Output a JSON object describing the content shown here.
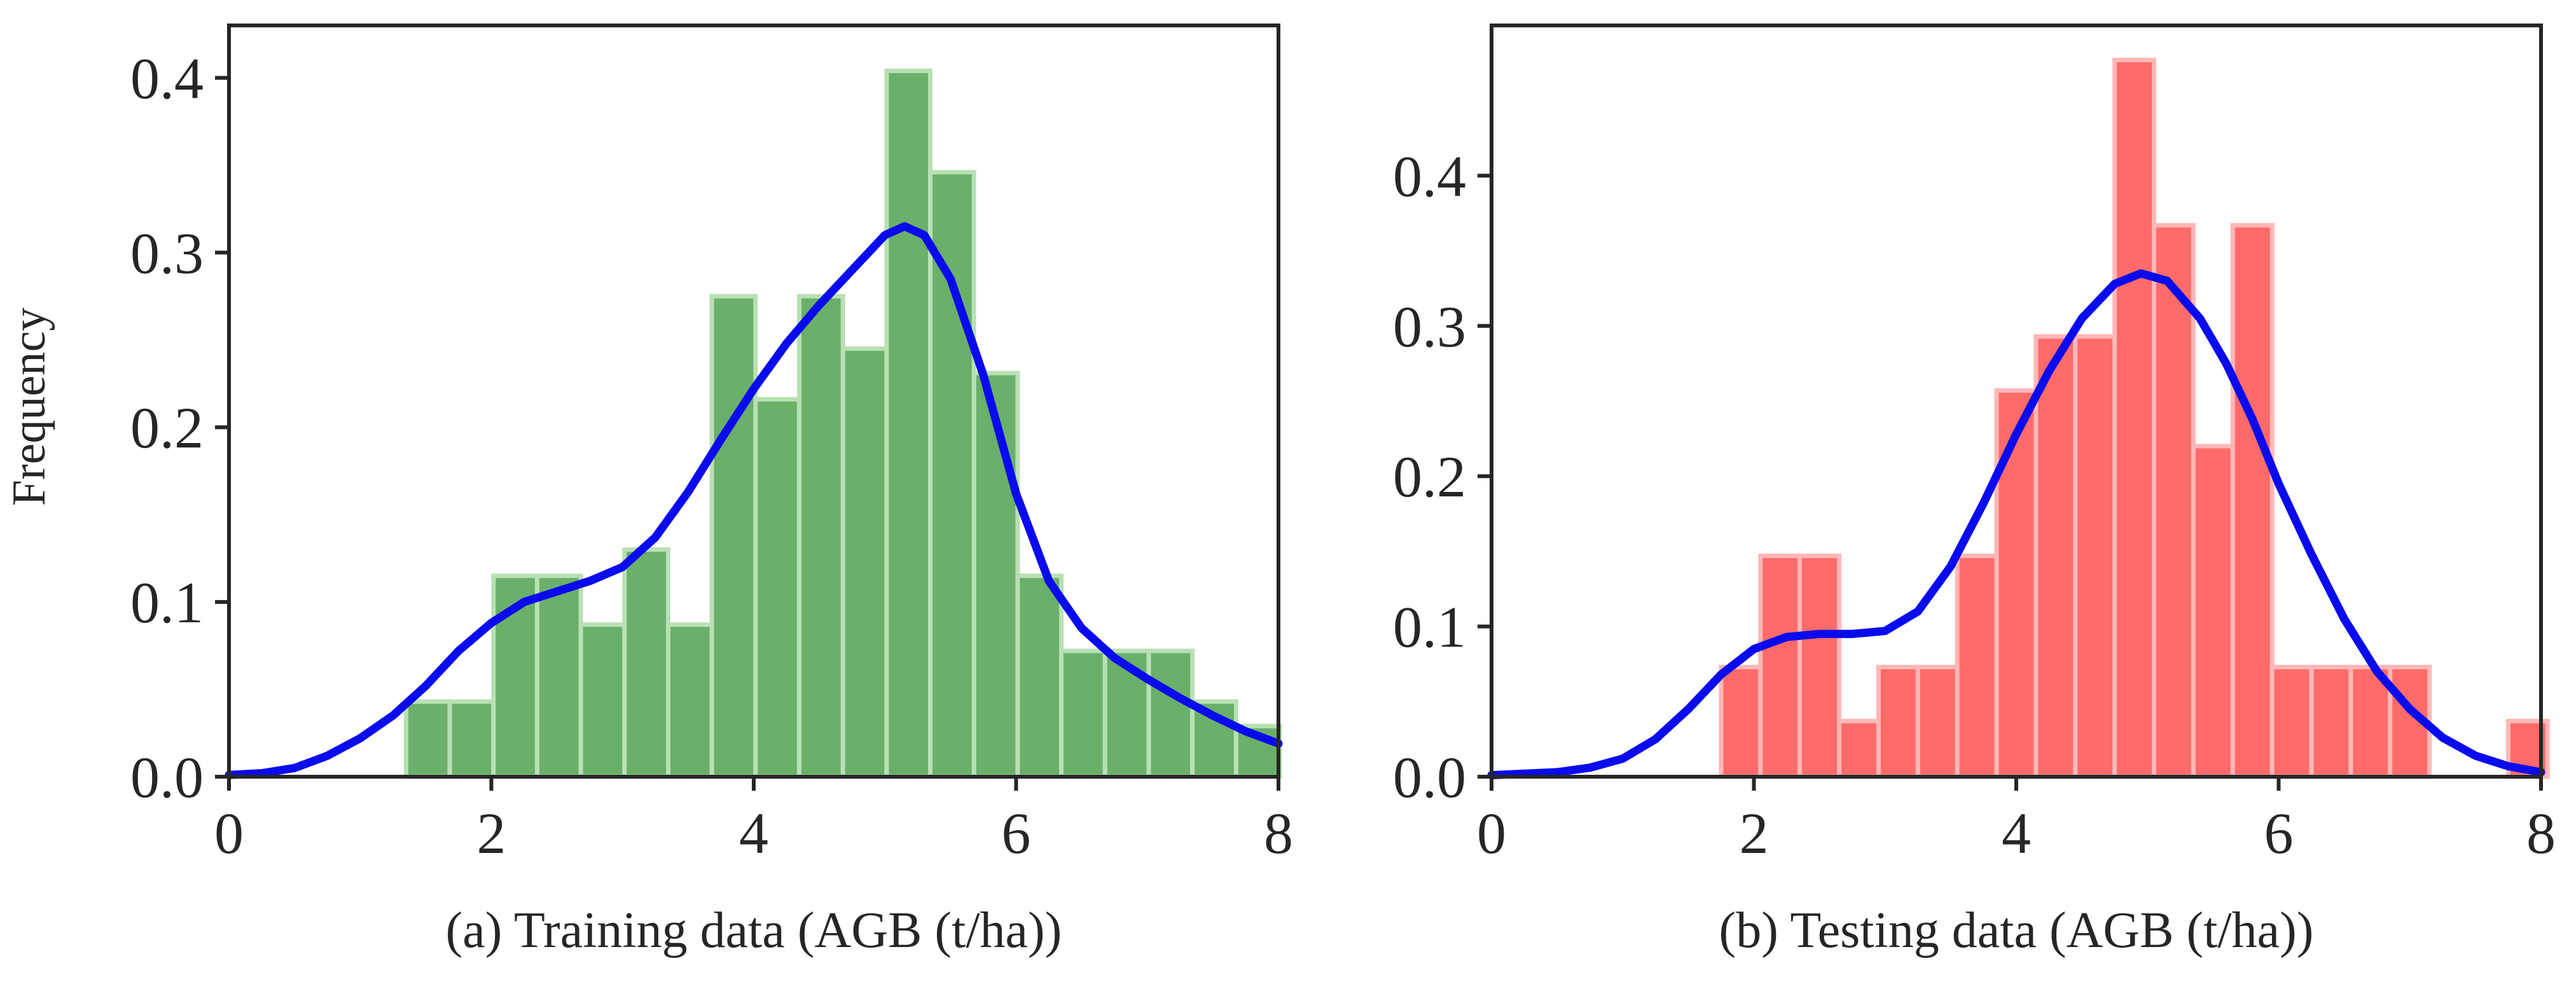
{
  "ylabel": "Frequency",
  "colors": {
    "training_bar": "#6aaf6a",
    "training_bar_edge": "#b9e0b4",
    "testing_bar": "#ff6a6a",
    "testing_bar_edge": "#ffb7b7",
    "kde_line": "#0a0aee",
    "axis": "#262626"
  },
  "chart_data": [
    {
      "type": "bar",
      "overlay": "kde-line",
      "xlabel": "(a) Training data (AGB (t/ha))",
      "ylabel": "Frequency",
      "xlim": [
        0,
        8
      ],
      "ylim": [
        0,
        0.43
      ],
      "x_ticks": [
        0,
        2,
        4,
        6,
        8
      ],
      "y_ticks": [
        0.0,
        0.1,
        0.2,
        0.3,
        0.4
      ],
      "x_tick_labels": [
        "0",
        "2",
        "4",
        "6",
        "8"
      ],
      "y_tick_labels": [
        "0.0",
        "0.1",
        "0.2",
        "0.3",
        "0.4"
      ],
      "grid": false,
      "bins": {
        "start": 1.35,
        "width": 0.333,
        "values": [
          0.043,
          0.043,
          0.115,
          0.115,
          0.087,
          0.13,
          0.087,
          0.275,
          0.216,
          0.275,
          0.245,
          0.404,
          0.346,
          0.231,
          0.115,
          0.072,
          0.072,
          0.072,
          0.043,
          0.029
        ]
      },
      "kde": {
        "x": [
          0,
          0.25,
          0.5,
          0.75,
          1.0,
          1.25,
          1.5,
          1.75,
          2.0,
          2.25,
          2.5,
          2.75,
          3.0,
          3.25,
          3.5,
          3.75,
          4.0,
          4.25,
          4.5,
          4.75,
          5.0,
          5.15,
          5.3,
          5.5,
          5.75,
          6.0,
          6.25,
          6.5,
          6.75,
          7.0,
          7.25,
          7.5,
          7.75,
          8.0
        ],
        "y": [
          0.001,
          0.002,
          0.005,
          0.012,
          0.022,
          0.035,
          0.052,
          0.072,
          0.088,
          0.1,
          0.106,
          0.112,
          0.12,
          0.137,
          0.163,
          0.193,
          0.222,
          0.248,
          0.27,
          0.29,
          0.31,
          0.315,
          0.31,
          0.285,
          0.23,
          0.162,
          0.112,
          0.085,
          0.068,
          0.056,
          0.045,
          0.035,
          0.026,
          0.019
        ]
      }
    },
    {
      "type": "bar",
      "overlay": "kde-line",
      "xlabel": "(b) Testing data (AGB (t/ha))",
      "ylabel": "",
      "xlim": [
        0,
        8
      ],
      "ylim": [
        0,
        0.5
      ],
      "x_ticks": [
        0,
        2,
        4,
        6,
        8
      ],
      "y_ticks": [
        0.0,
        0.1,
        0.2,
        0.3,
        0.4
      ],
      "x_tick_labels": [
        "0",
        "2",
        "4",
        "6",
        "8"
      ],
      "y_tick_labels": [
        "0.0",
        "0.1",
        "0.2",
        "0.3",
        "0.4"
      ],
      "grid": false,
      "bins": {
        "start": 1.75,
        "width": 0.3,
        "values": [
          0.073,
          0.147,
          0.147,
          0.037,
          0.073,
          0.073,
          0.147,
          0.257,
          0.293,
          0.293,
          0.477,
          0.367,
          0.22,
          0.367,
          0.073,
          0.073,
          0.073,
          0.073,
          0,
          0,
          0.037
        ]
      },
      "kde": {
        "x": [
          0,
          0.25,
          0.5,
          0.75,
          1.0,
          1.25,
          1.5,
          1.75,
          2.0,
          2.25,
          2.5,
          2.75,
          3.0,
          3.25,
          3.5,
          3.75,
          4.0,
          4.25,
          4.5,
          4.75,
          4.95,
          5.15,
          5.4,
          5.6,
          5.8,
          6.0,
          6.25,
          6.5,
          6.75,
          7.0,
          7.25,
          7.5,
          7.75,
          8.0
        ],
        "y": [
          0.001,
          0.002,
          0.003,
          0.006,
          0.012,
          0.025,
          0.045,
          0.068,
          0.085,
          0.093,
          0.095,
          0.095,
          0.097,
          0.11,
          0.14,
          0.182,
          0.228,
          0.27,
          0.305,
          0.328,
          0.335,
          0.33,
          0.305,
          0.275,
          0.238,
          0.195,
          0.148,
          0.105,
          0.07,
          0.045,
          0.026,
          0.014,
          0.007,
          0.003
        ]
      }
    }
  ]
}
